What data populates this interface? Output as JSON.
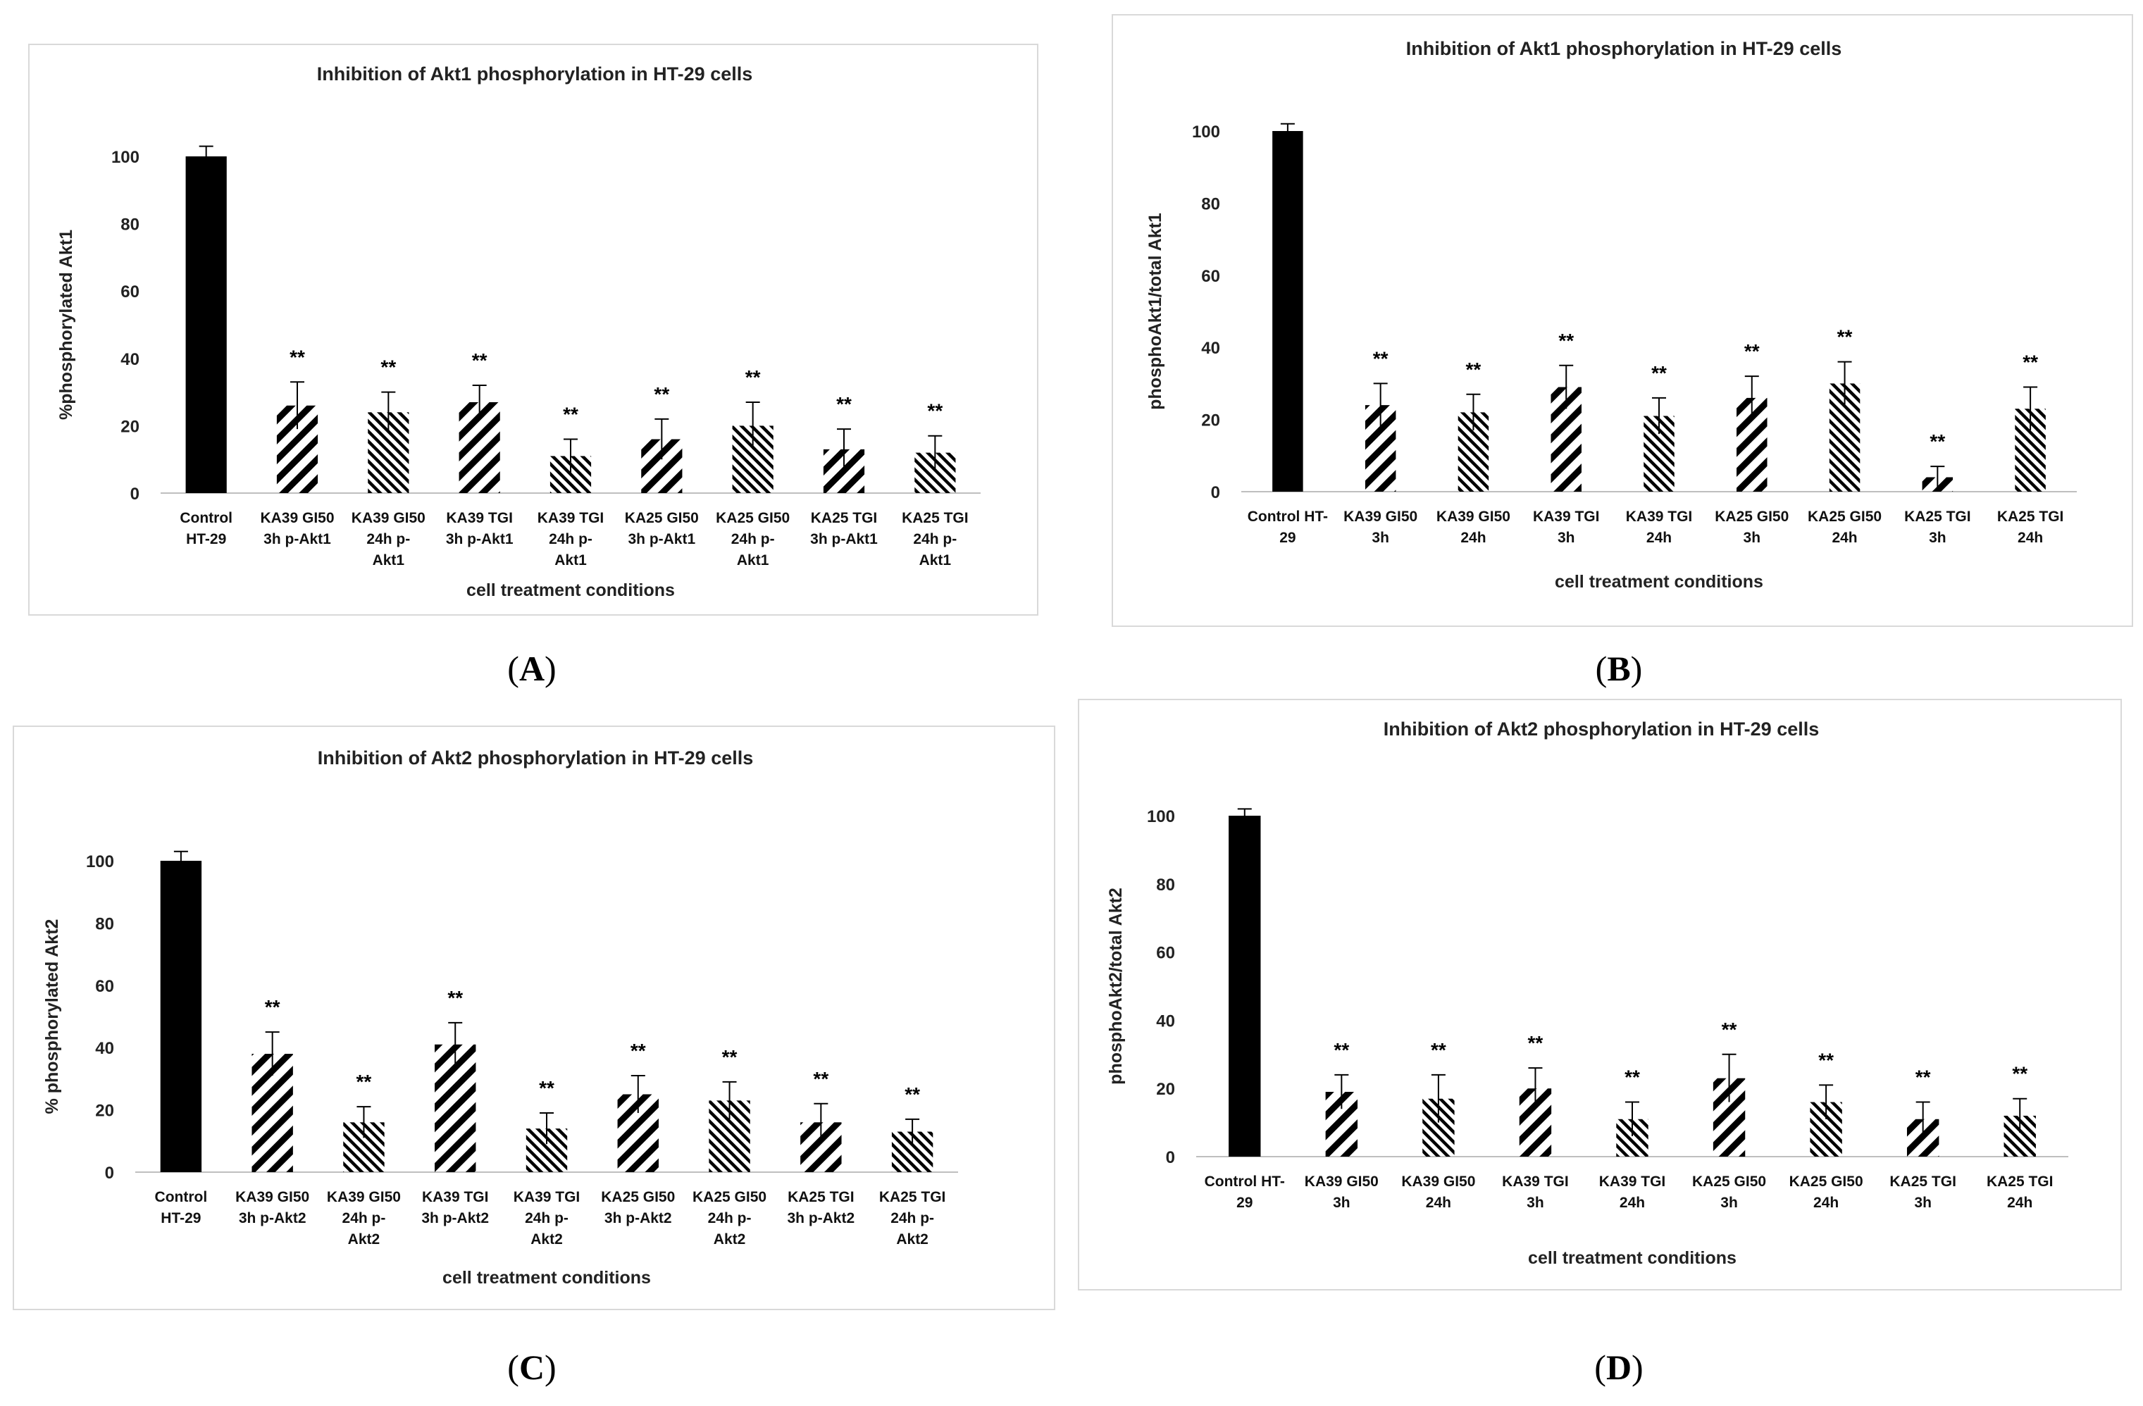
{
  "panels": [
    {
      "label": "A"
    },
    {
      "label": "B"
    },
    {
      "label": "C"
    },
    {
      "label": "D"
    }
  ],
  "chart_data": [
    {
      "type": "bar",
      "title": "Inhibition of Akt1 phosphorylation in HT-29 cells",
      "ylabel": "%phosphorylated Akt1",
      "xlabel": "cell treatment conditions",
      "ylim": [
        0,
        100
      ],
      "yticks": [
        0,
        20,
        40,
        60,
        80,
        100
      ],
      "categories": [
        [
          "Control",
          "HT-29"
        ],
        [
          "KA39 GI50",
          "3h p-Akt1"
        ],
        [
          "KA39 GI50",
          "24h p-",
          "Akt1"
        ],
        [
          "KA39 TGI",
          "3h p-Akt1"
        ],
        [
          "KA39 TGI",
          "24h p-",
          "Akt1"
        ],
        [
          "KA25 GI50",
          "3h p-Akt1"
        ],
        [
          "KA25 GI50",
          "24h p-",
          "Akt1"
        ],
        [
          "KA25 TGI",
          "3h p-Akt1"
        ],
        [
          "KA25 TGI",
          "24h p-",
          "Akt1"
        ]
      ],
      "values": [
        100,
        26,
        24,
        27,
        11,
        16,
        20,
        13,
        12
      ],
      "errors": [
        3,
        7,
        6,
        5,
        5,
        6,
        7,
        6,
        5
      ],
      "patterns": [
        "solid",
        "wide",
        "dense",
        "wide",
        "dense",
        "wide",
        "dense",
        "wide",
        "dense"
      ],
      "significance": [
        "",
        "**",
        "**",
        "**",
        "**",
        "**",
        "**",
        "**",
        "**"
      ]
    },
    {
      "type": "bar",
      "title": "Inhibition of Akt1 phosphorylation in HT-29 cells",
      "ylabel": "phosphoAkt1/total Akt1",
      "xlabel": "cell treatment conditions",
      "ylim": [
        0,
        100
      ],
      "yticks": [
        0,
        20,
        40,
        60,
        80,
        100
      ],
      "categories": [
        [
          "Control HT-",
          "29"
        ],
        [
          "KA39 GI50",
          "3h"
        ],
        [
          "KA39 GI50",
          "24h"
        ],
        [
          "KA39 TGI",
          "3h"
        ],
        [
          "KA39 TGI",
          "24h"
        ],
        [
          "KA25 GI50",
          "3h"
        ],
        [
          "KA25 GI50",
          "24h"
        ],
        [
          "KA25 TGI",
          "3h"
        ],
        [
          "KA25 TGI",
          "24h"
        ]
      ],
      "values": [
        100,
        24,
        22,
        29,
        21,
        26,
        30,
        4,
        23
      ],
      "errors": [
        2,
        6,
        5,
        6,
        5,
        6,
        6,
        3,
        6
      ],
      "patterns": [
        "solid",
        "wide",
        "dense",
        "wide",
        "dense",
        "wide",
        "dense",
        "wide",
        "dense"
      ],
      "significance": [
        "",
        "**",
        "**",
        "**",
        "**",
        "**",
        "**",
        "**",
        "**"
      ]
    },
    {
      "type": "bar",
      "title": "Inhibition of Akt2 phosphorylation in HT-29 cells",
      "ylabel": "% phosphorylated Akt2",
      "xlabel": "cell treatment conditions",
      "ylim": [
        0,
        100
      ],
      "yticks": [
        0,
        20,
        40,
        60,
        80,
        100
      ],
      "categories": [
        [
          "Control",
          "HT-29"
        ],
        [
          "KA39 GI50",
          "3h p-Akt2"
        ],
        [
          "KA39 GI50",
          "24h p-",
          "Akt2"
        ],
        [
          "KA39 TGI",
          "3h p-Akt2"
        ],
        [
          "KA39 TGI",
          "24h p-",
          "Akt2"
        ],
        [
          "KA25 GI50",
          "3h p-Akt2"
        ],
        [
          "KA25 GI50",
          "24h p-",
          "Akt2"
        ],
        [
          "KA25 TGI",
          "3h p-Akt2"
        ],
        [
          "KA25 TGI",
          "24h p-",
          "Akt2"
        ]
      ],
      "values": [
        100,
        38,
        16,
        41,
        14,
        25,
        23,
        16,
        13
      ],
      "errors": [
        3,
        7,
        5,
        7,
        5,
        6,
        6,
        6,
        4
      ],
      "patterns": [
        "solid",
        "wide",
        "dense",
        "wide",
        "dense",
        "wide",
        "dense",
        "wide",
        "dense"
      ],
      "significance": [
        "",
        "**",
        "**",
        "**",
        "**",
        "**",
        "**",
        "**",
        "**"
      ]
    },
    {
      "type": "bar",
      "title": "Inhibition of Akt2 phosphorylation in HT-29 cells",
      "ylabel": "phosphoAkt2/total Akt2",
      "xlabel": "cell treatment conditions",
      "ylim": [
        0,
        100
      ],
      "yticks": [
        0,
        20,
        40,
        60,
        80,
        100
      ],
      "categories": [
        [
          "Control HT-",
          "29"
        ],
        [
          "KA39 GI50",
          "3h"
        ],
        [
          "KA39 GI50",
          "24h"
        ],
        [
          "KA39 TGI",
          "3h"
        ],
        [
          "KA39 TGI",
          "24h"
        ],
        [
          "KA25 GI50",
          "3h"
        ],
        [
          "KA25 GI50",
          "24h"
        ],
        [
          "KA25 TGI",
          "3h"
        ],
        [
          "KA25 TGI",
          "24h"
        ]
      ],
      "values": [
        100,
        19,
        17,
        20,
        11,
        23,
        16,
        11,
        12
      ],
      "errors": [
        2,
        5,
        7,
        6,
        5,
        7,
        5,
        5,
        5
      ],
      "patterns": [
        "solid",
        "wide",
        "dense",
        "wide",
        "dense",
        "wide",
        "dense",
        "wide",
        "dense"
      ],
      "significance": [
        "",
        "**",
        "**",
        "**",
        "**",
        "**",
        "**",
        "**",
        "**"
      ]
    }
  ]
}
